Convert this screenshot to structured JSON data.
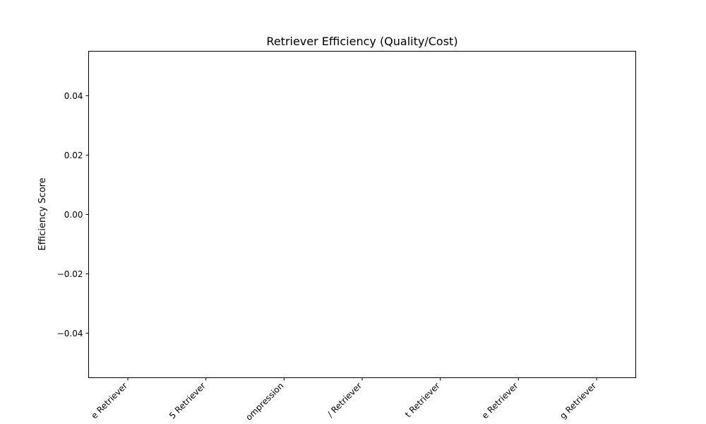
{
  "chart_data": {
    "type": "bar",
    "title": "Retriever Efficiency (Quality/Cost)",
    "xlabel": "",
    "ylabel": "Efficiency Score",
    "categories": [
      "e Retriever",
      "5 Retriever",
      "ompression",
      "/ Retriever",
      "t Retriever",
      "e Retriever",
      "g Retriever"
    ],
    "values": [
      0,
      0,
      0,
      0,
      0,
      0,
      0
    ],
    "ylim": [
      -0.055,
      0.055
    ],
    "yticks": [
      0.04,
      0.02,
      0.0,
      -0.02,
      -0.04
    ],
    "ytick_labels": [
      "0.04",
      "0.02",
      "0.00",
      "−0.02",
      "−0.04"
    ],
    "grid": false,
    "legend": "none",
    "bar_color": "#1f77b4"
  }
}
